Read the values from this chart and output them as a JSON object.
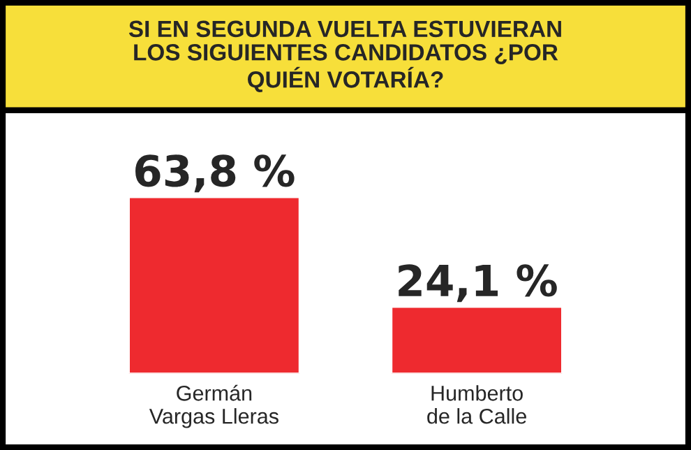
{
  "chart_data": {
    "type": "bar",
    "title": "SI EN SEGUNDA VUELTA ESTUVIERAN\nLOS SIGUIENTES CANDIDATOS ¿POR\nQUIÉN VOTARÍA?",
    "categories": [
      "Germán\nVargas Lleras",
      "Humberto\nde la Calle"
    ],
    "values": [
      63.8,
      24.1
    ],
    "value_labels": [
      "63,8 %",
      "24,1 %"
    ],
    "color": "#ee2a2f"
  }
}
